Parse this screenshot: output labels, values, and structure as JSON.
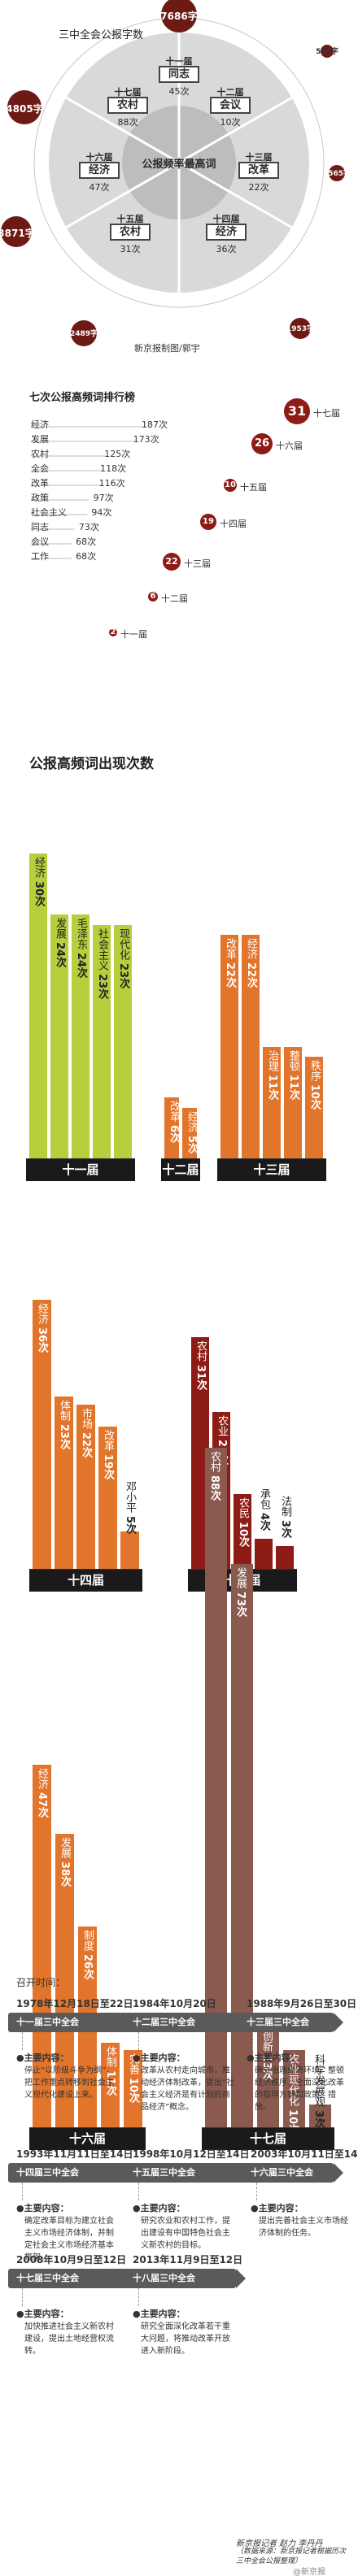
{
  "circle": {
    "title": "三中全会公报字数",
    "center": "公报频率最高词",
    "plenums": [
      {
        "session": "十一届",
        "word": "同志",
        "count": "45次",
        "chars": "7686字"
      },
      {
        "session": "十二届",
        "word": "会议",
        "count": "10次",
        "chars": "553字"
      },
      {
        "session": "十三届",
        "word": "改革",
        "count": "22次",
        "chars": "1565字"
      },
      {
        "session": "十四届",
        "word": "经济",
        "count": "36次",
        "chars": "1953字"
      },
      {
        "session": "十五届",
        "word": "农村",
        "count": "31次",
        "chars": "2489字"
      },
      {
        "session": "十六届",
        "word": "经济",
        "count": "47次",
        "chars": "3871字"
      },
      {
        "session": "十七届",
        "word": "农村",
        "count": "88次",
        "chars": "4805字"
      }
    ],
    "credit": "新京报制图/郭宇"
  },
  "ranking": {
    "title": "七次公报高频词排行榜",
    "words": [
      {
        "word": "经济",
        "value": 187,
        "label": "187次"
      },
      {
        "word": "发展",
        "value": 173,
        "label": "173次"
      },
      {
        "word": "农村",
        "value": 125,
        "label": "125次"
      },
      {
        "word": "全会",
        "value": 118,
        "label": "118次"
      },
      {
        "word": "改革",
        "value": 116,
        "label": "116次"
      },
      {
        "word": "政策",
        "value": 97,
        "label": "97次"
      },
      {
        "word": "社会主义",
        "value": 94,
        "label": "94次"
      },
      {
        "word": "同志",
        "value": 73,
        "label": "73次"
      },
      {
        "word": "会议",
        "value": 68,
        "label": "68次"
      },
      {
        "word": "工作",
        "value": 68,
        "label": "68次"
      }
    ],
    "sessions": [
      {
        "num": "31",
        "session": "十七届"
      },
      {
        "num": "26",
        "session": "十六届"
      },
      {
        "num": "10",
        "session": "十五届"
      },
      {
        "num": "19",
        "session": "十四届"
      },
      {
        "num": "22",
        "session": "十三届"
      },
      {
        "num": "6",
        "session": "十二届"
      },
      {
        "num": "2",
        "session": "十一届"
      }
    ]
  },
  "chart_title": "公报高频词出现次数",
  "chart_data": [
    {
      "type": "bar",
      "title": "十一届",
      "categories": [
        "经济",
        "发展",
        "毛泽东",
        "社会主义",
        "现代化"
      ],
      "values": [
        30,
        24,
        24,
        23,
        23
      ],
      "labels": [
        "30次",
        "24次",
        "24次",
        "23次",
        "23次"
      ]
    },
    {
      "type": "bar",
      "title": "十二届",
      "categories": [
        "改革",
        "经济"
      ],
      "values": [
        6,
        5
      ],
      "labels": [
        "6次",
        "5次"
      ]
    },
    {
      "type": "bar",
      "title": "十三届",
      "categories": [
        "改革",
        "经济",
        "治理",
        "整顿",
        "秩序"
      ],
      "values": [
        22,
        22,
        11,
        11,
        10
      ],
      "labels": [
        "22次",
        "22次",
        "11次",
        "11次",
        "10次"
      ]
    },
    {
      "type": "bar",
      "title": "十四届",
      "categories": [
        "经济",
        "体制",
        "市场",
        "改革",
        "邓小平"
      ],
      "values": [
        36,
        23,
        22,
        19,
        5
      ],
      "labels": [
        "36次",
        "23次",
        "22次",
        "19次",
        "5次"
      ]
    },
    {
      "type": "bar",
      "title": "十五届",
      "categories": [
        "农村",
        "农业",
        "农民",
        "承包",
        "法制"
      ],
      "values": [
        31,
        21,
        10,
        4,
        3
      ],
      "labels": [
        "31次",
        "21次",
        "10次",
        "4次",
        "3次"
      ]
    },
    {
      "type": "bar",
      "title": "十六届",
      "categories": [
        "经济",
        "发展",
        "制度",
        "体制",
        "完善"
      ],
      "values": [
        47,
        38,
        26,
        11,
        10
      ],
      "labels": [
        "47次",
        "38次",
        "26次",
        "11次",
        "10次"
      ]
    },
    {
      "type": "bar",
      "title": "十七届",
      "categories": [
        "农村",
        "发展",
        "创新",
        "农业现代化",
        "科学发展观"
      ],
      "values": [
        88,
        73,
        13,
        10,
        3
      ],
      "labels": [
        "88次",
        "73次",
        "13次",
        "10次",
        "3次"
      ]
    }
  ],
  "timeline": [
    {
      "date": "1978年12月18日至22日",
      "date_prefix": "召开时间：",
      "badge": "十一届三中全会",
      "content_label": "●主要内容：",
      "content": "停止“以阶级斗争为纲”，把工作重点转移到社会主义现代化建设上来。"
    },
    {
      "date": "1984年10月20日",
      "badge": "十二届三中全会",
      "content_label": "●主要内容：",
      "content": "改革从农村走向城市，推动经济体制改革，提出“社会主义经济是有计划的商品经济”概念。"
    },
    {
      "date": "1988年9月26日至30日",
      "badge": "十三届三中全会",
      "content_label": "●主要内容：",
      "content": "确立治理经济环境、整顿经济秩序，全面深化改革的指导方针和政策、措施。"
    },
    {
      "date": "1993年11月11日至14日",
      "badge": "十四届三中全会",
      "content_label": "●主要内容：",
      "content": "确定改革目标为建立社会主义市场经济体制，并制定社会主义市场经济基本框架。"
    },
    {
      "date": "1998年10月12日至14日",
      "badge": "十五届三中全会",
      "content_label": "●主要内容：",
      "content": "研究农业和农村工作，提出建设有中国特色社会主义新农村的目标。"
    },
    {
      "date": "2003年10月11日至14日",
      "badge": "十六届三中全会",
      "content_label": "●主要内容：",
      "content": "提出完善社会主义市场经济体制的任务。"
    },
    {
      "date": "2008年10月9日至12日",
      "badge": "十七届三中全会",
      "content_label": "●主要内容：",
      "content": "加快推进社会主义新农村建设，提出土地经营权流转。"
    },
    {
      "date": "2013年11月9日至12日",
      "badge": "十八届三中全会",
      "content_label": "●主要内容：",
      "content": "研究全面深化改革若干重大问题，将推动改革开放进入新阶段。"
    }
  ],
  "credits": {
    "line1": "新京报记者 赵力 李丹丹",
    "line2": "（数据来源：新京报记者根据历次三中全会公报整理）",
    "weibo": "@新京报"
  },
  "colors": {
    "dark": "#6e1a14",
    "red": "#8c1c15",
    "orange": "#e2752c",
    "green": "#b6cf3d",
    "brown": "#8a5a4e",
    "gray": "#5a5a5a"
  }
}
